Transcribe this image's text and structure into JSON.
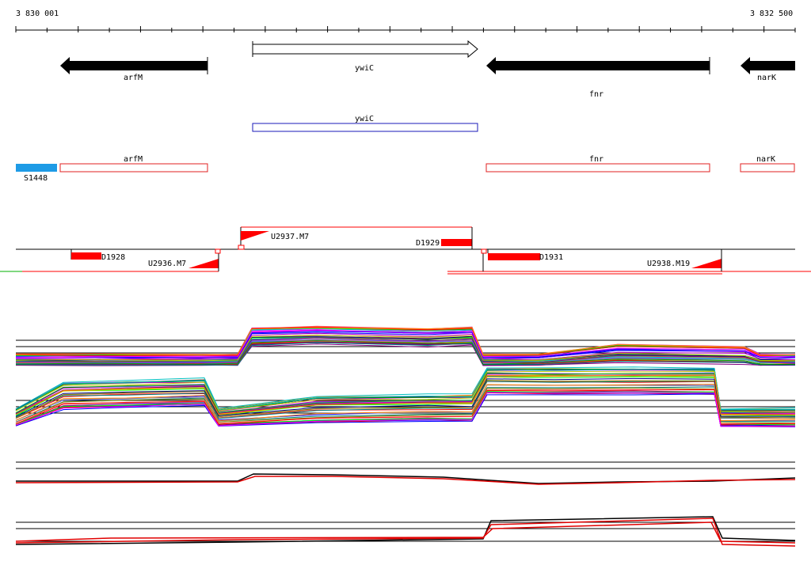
{
  "ruler": {
    "start_label": "3 830 001",
    "end_label": "3 832 500",
    "start": 3830001,
    "end": 3832500
  },
  "genes": [
    {
      "id": "arfM",
      "label": "arfM",
      "strand": "-",
      "start": 3830140,
      "end": 3830607
    },
    {
      "id": "ywiC",
      "label": "ywiC",
      "strand": "+",
      "start": 3830750,
      "end": 3831460
    },
    {
      "id": "fnr",
      "label": "fnr",
      "strand": "-",
      "start": 3831485,
      "end": 3832196
    },
    {
      "id": "narK",
      "label": "narK",
      "strand": "-",
      "start": 3832290,
      "end": 3832500
    }
  ],
  "cds_boxes": [
    {
      "id": "ywiC",
      "label": "ywiC",
      "start": 3830750,
      "end": 3831460,
      "color": "#1a1ab8"
    }
  ],
  "features": [
    {
      "id": "S1448",
      "label": "S1448",
      "start": 3830001,
      "end": 3830130,
      "color": "#1e9be6",
      "filled": true
    },
    {
      "id": "arfM",
      "label": "arfM",
      "start": 3830140,
      "end": 3830607,
      "color": "#e02020",
      "filled": false
    },
    {
      "id": "fnr",
      "label": "fnr",
      "start": 3831485,
      "end": 3832196,
      "color": "#e02020",
      "filled": false
    },
    {
      "id": "narK",
      "label": "narK",
      "start": 3832290,
      "end": 3832500,
      "color": "#e02020",
      "filled": false
    }
  ],
  "segments": [
    {
      "id": "D1928",
      "label": "D1928"
    },
    {
      "id": "U2936.M7",
      "label": "U2936.M7"
    },
    {
      "id": "U2937.M7",
      "label": "U2937.M7"
    },
    {
      "id": "D1929",
      "label": "D1929"
    },
    {
      "id": "D1931",
      "label": "D1931"
    },
    {
      "id": "U2938.M19",
      "label": "U2938.M19"
    }
  ],
  "colors": {
    "gene_arrow": "#000000",
    "feature_red": "#ff0000",
    "blue_box": "#1a1ab8",
    "feature_blue": "#1e9be6",
    "green_line": "#00b000"
  }
}
